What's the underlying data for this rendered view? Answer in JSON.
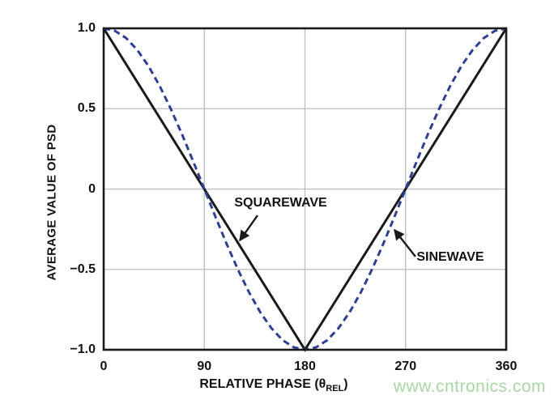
{
  "watermark": {
    "text": "www.cntronics.com",
    "color": "#a7d8a1"
  },
  "chart_data": {
    "type": "line",
    "title": "",
    "xlabel": "RELATIVE PHASE (θREL)",
    "xlabel_prefix": "RELATIVE PHASE (θ",
    "xlabel_sub": "REL",
    "xlabel_suffix": ")",
    "ylabel": "AVERAGE VALUE OF PSD",
    "xlim": [
      0,
      360
    ],
    "ylim": [
      -1,
      1
    ],
    "x_ticks": [
      0,
      90,
      180,
      270,
      360
    ],
    "x_tick_labels": [
      "0",
      "90",
      "180",
      "270",
      "360"
    ],
    "y_ticks": [
      1,
      0.5,
      0,
      -0.5,
      -1
    ],
    "y_tick_labels": [
      "1.0",
      "0.5",
      "0",
      "−0.5",
      "−1.0"
    ],
    "grid": true,
    "legend_position": "inline-annotations",
    "colors": {
      "squarewave": "#1a1a1a",
      "sinewave": "#2e3f94",
      "grid": "#bcbcbc",
      "frame": "#1a1a1a"
    },
    "series": [
      {
        "name": "SQUAREWAVE",
        "style": "solid",
        "color": "#1a1a1a",
        "x": [
          0,
          180,
          360
        ],
        "y": [
          1,
          -1,
          1
        ]
      },
      {
        "name": "SINEWAVE",
        "style": "dashed",
        "color": "#2e3f94",
        "x": [
          0,
          10,
          20,
          30,
          40,
          50,
          60,
          70,
          80,
          90,
          100,
          110,
          120,
          130,
          140,
          150,
          160,
          170,
          180,
          190,
          200,
          210,
          220,
          230,
          240,
          250,
          260,
          270,
          280,
          290,
          300,
          310,
          320,
          330,
          340,
          350,
          360
        ],
        "y": [
          1,
          0.985,
          0.94,
          0.866,
          0.766,
          0.643,
          0.5,
          0.342,
          0.174,
          0,
          -0.174,
          -0.342,
          -0.5,
          -0.643,
          -0.766,
          -0.866,
          -0.94,
          -0.985,
          -1,
          -0.985,
          -0.94,
          -0.866,
          -0.766,
          -0.643,
          -0.5,
          -0.342,
          -0.174,
          0,
          0.174,
          0.342,
          0.5,
          0.643,
          0.766,
          0.866,
          0.94,
          0.985,
          1
        ]
      }
    ],
    "annotations": [
      {
        "label": "SQUAREWAVE",
        "label_x": 158.3,
        "label_y": -0.088,
        "arrow": {
          "from_x": 137.6,
          "from_y": -0.164,
          "to_x": 121.7,
          "to_y": -0.32
        }
      },
      {
        "label": "SINEWAVE",
        "label_x": 310,
        "label_y": -0.426,
        "arrow": {
          "from_x": 278.8,
          "from_y": -0.42,
          "to_x": 260,
          "to_y": -0.254
        }
      }
    ]
  }
}
